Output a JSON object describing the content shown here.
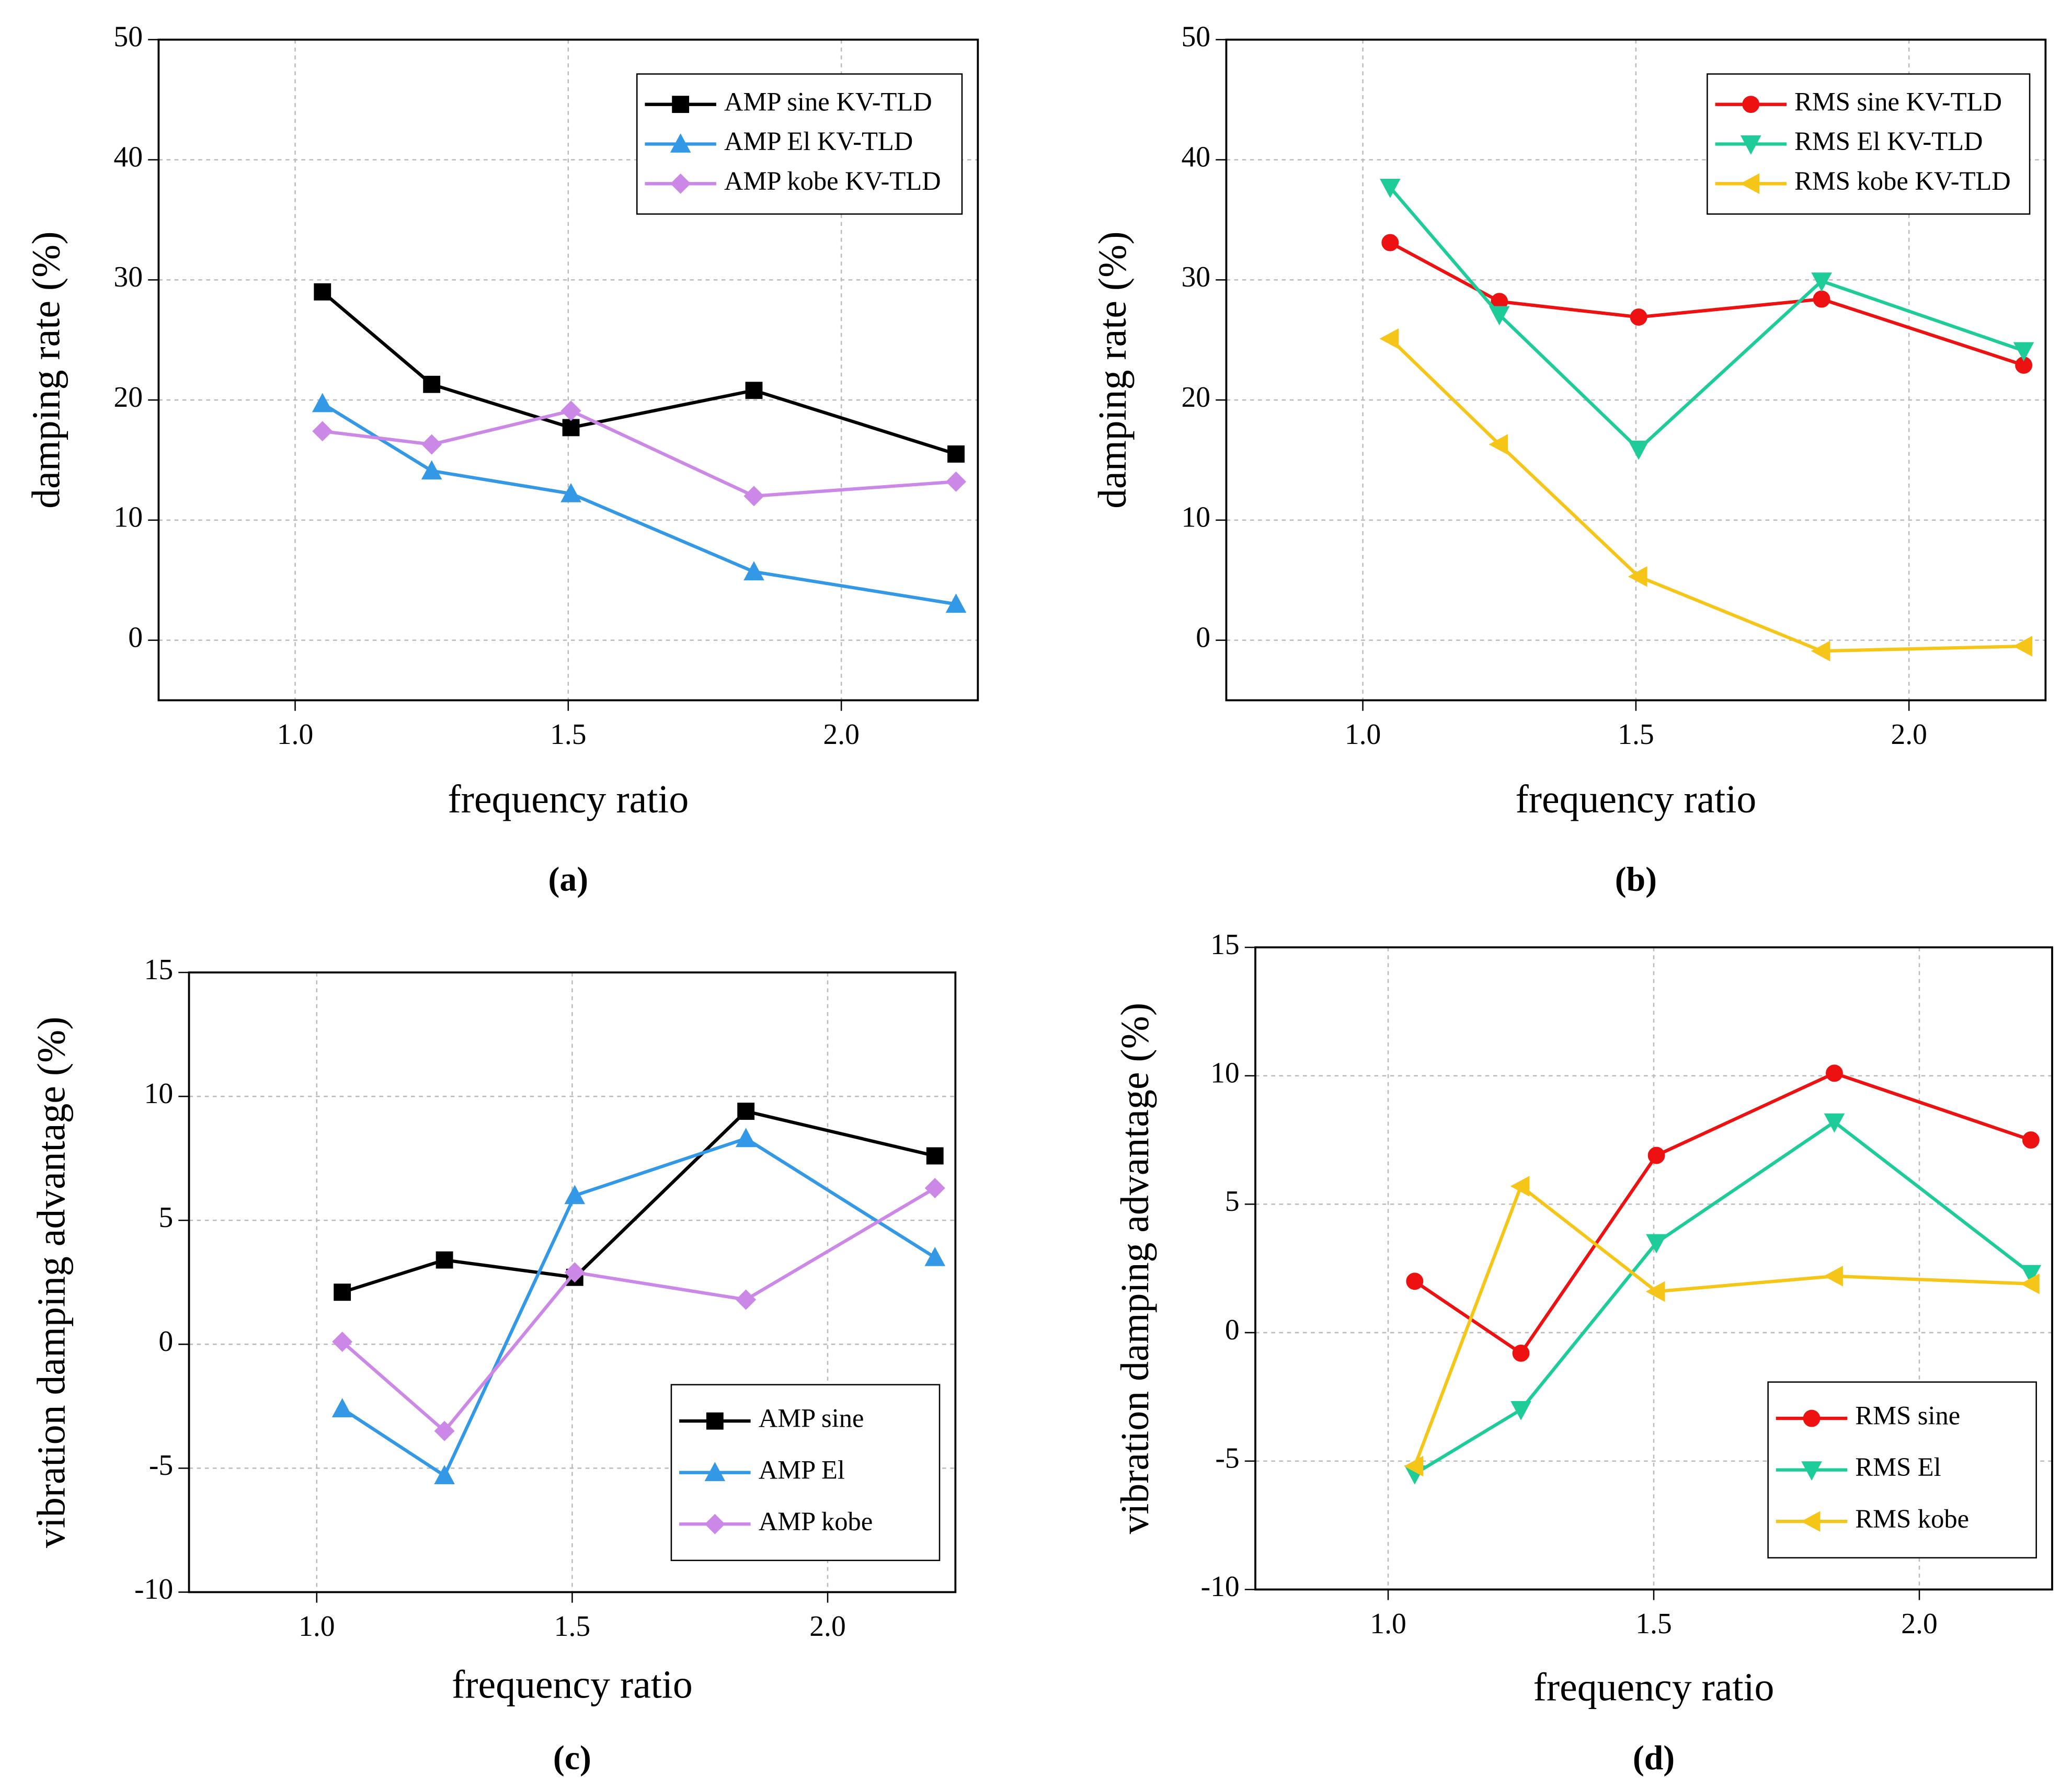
{
  "chart_data": [
    {
      "type": "line",
      "caption": "(a)",
      "xlabel": "frequency ratio",
      "ylabel": "damping rate (%)",
      "x": [
        1.05,
        1.25,
        1.505,
        1.84,
        2.21
      ],
      "xlim": [
        0.75,
        2.25
      ],
      "xticks": [
        {
          "value": 1,
          "label": "1.0"
        },
        1.5,
        {
          "value": 2,
          "label": "2.0"
        }
      ],
      "ylim": [
        -5,
        50
      ],
      "yticks": [
        0,
        10,
        20,
        30,
        40,
        50
      ],
      "grid": true,
      "legend": "upper right",
      "series": [
        {
          "name": "AMP sine KV-TLD",
          "color": "#000000",
          "marker": "square",
          "values": [
            29.0,
            21.3,
            17.7,
            20.8,
            15.5
          ]
        },
        {
          "name": "AMP El KV-TLD",
          "color": "#3399e6",
          "marker": "triangle-up",
          "values": [
            19.7,
            14.1,
            12.2,
            5.7,
            3.0
          ]
        },
        {
          "name": "AMP kobe KV-TLD",
          "color": "#cc88e6",
          "marker": "diamond",
          "values": [
            17.4,
            16.3,
            19.1,
            12.0,
            13.2
          ]
        }
      ]
    },
    {
      "type": "line",
      "caption": "(b)",
      "xlabel": "frequency ratio",
      "ylabel": "damping rate (%)",
      "x": [
        1.05,
        1.25,
        1.505,
        1.84,
        2.21
      ],
      "xlim": [
        0.75,
        2.25
      ],
      "xticks": [
        {
          "value": 1,
          "label": "1.0"
        },
        1.5,
        {
          "value": 2,
          "label": "2.0"
        }
      ],
      "ylim": [
        -5,
        50
      ],
      "yticks": [
        0,
        10,
        20,
        30,
        40,
        50
      ],
      "grid": true,
      "legend": "upper right",
      "series": [
        {
          "name": "RMS sine KV-TLD",
          "color": "#ee1111",
          "marker": "circle",
          "values": [
            33.1,
            28.2,
            26.9,
            28.4,
            22.9
          ]
        },
        {
          "name": "RMS El KV-TLD",
          "color": "#1ecc99",
          "marker": "triangle-down",
          "values": [
            37.7,
            27.1,
            15.9,
            29.9,
            24.1
          ]
        },
        {
          "name": "RMS kobe KV-TLD",
          "color": "#f5c518",
          "marker": "triangle-left",
          "values": [
            25.1,
            16.3,
            5.3,
            -0.9,
            -0.5
          ]
        }
      ]
    },
    {
      "type": "line",
      "caption": "(c)",
      "xlabel": "frequency ratio",
      "ylabel": "vibration damping advantage (%)",
      "x": [
        1.05,
        1.25,
        1.505,
        1.84,
        2.21
      ],
      "xlim": [
        0.75,
        2.25
      ],
      "xticks": [
        {
          "value": 1,
          "label": "1.0"
        },
        1.5,
        {
          "value": 2,
          "label": "2.0"
        }
      ],
      "ylim": [
        -10,
        15
      ],
      "yticks": [
        -10,
        -5,
        0,
        5,
        10,
        15
      ],
      "grid": true,
      "legend": "lower right",
      "series": [
        {
          "name": "AMP sine",
          "color": "#000000",
          "marker": "square",
          "values": [
            2.1,
            3.4,
            2.7,
            9.4,
            7.6
          ]
        },
        {
          "name": "AMP El",
          "color": "#3399e6",
          "marker": "triangle-up",
          "values": [
            -2.6,
            -5.3,
            6.0,
            8.3,
            3.5
          ]
        },
        {
          "name": "AMP kobe",
          "color": "#cc88e6",
          "marker": "diamond",
          "values": [
            0.1,
            -3.5,
            2.9,
            1.8,
            6.3
          ]
        }
      ]
    },
    {
      "type": "line",
      "caption": "(d)",
      "xlabel": "frequency ratio",
      "ylabel": "vibration damping advantage (%)",
      "x": [
        1.05,
        1.25,
        1.505,
        1.84,
        2.21
      ],
      "xlim": [
        0.75,
        2.25
      ],
      "xticks": [
        {
          "value": 1,
          "label": "1.0"
        },
        1.5,
        {
          "value": 2,
          "label": "2.0"
        }
      ],
      "ylim": [
        -10,
        15
      ],
      "yticks": [
        -10,
        -5,
        0,
        5,
        10,
        15
      ],
      "grid": true,
      "legend": "lower right",
      "series": [
        {
          "name": "RMS sine",
          "color": "#ee1111",
          "marker": "circle",
          "values": [
            2.0,
            -0.8,
            6.9,
            10.1,
            7.5
          ]
        },
        {
          "name": "RMS El",
          "color": "#1ecc99",
          "marker": "triangle-down",
          "values": [
            -5.5,
            -3.0,
            3.5,
            8.2,
            2.3
          ]
        },
        {
          "name": "RMS kobe",
          "color": "#f5c518",
          "marker": "triangle-left",
          "values": [
            -5.2,
            5.7,
            1.6,
            2.2,
            1.9
          ]
        }
      ]
    }
  ]
}
